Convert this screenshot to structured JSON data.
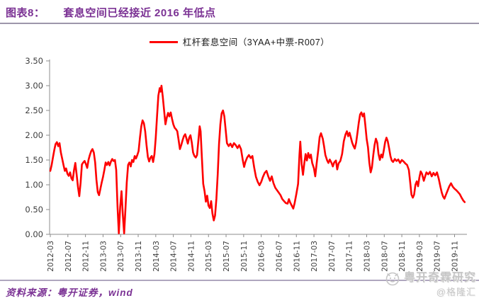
{
  "header": {
    "figure_label": "图表8：",
    "figure_title": "套息空间已经接近 2016 年低点"
  },
  "legend": {
    "series_label": "杠杆套息空间（3YAA+中票-R007）"
  },
  "footer": {
    "source": "资料来源：粤开证券，wind"
  },
  "watermark": {
    "brand": "粤开奇霖研究",
    "handle": "@格隆汇"
  },
  "colors": {
    "title_purple": "#7B3294",
    "series_red": "#FE0000",
    "axis_gray": "#8C8C8C",
    "tick_text": "#3d3d3d",
    "watermark_gray": "#C6C6C6"
  },
  "chart_data": {
    "type": "line",
    "title": "杠杆套息空间（3YAA+中票-R007）",
    "xlabel": "",
    "ylabel": "",
    "x_unit": "months since 2012-03",
    "xlim": [
      0,
      94.5
    ],
    "ylim": [
      0,
      3.5
    ],
    "grid": false,
    "legend_position": "top-center",
    "y_tick_labels": [
      "0.00",
      "0.50",
      "1.00",
      "1.50",
      "2.00",
      "2.50",
      "3.00",
      "3.50"
    ],
    "x_tick_interval_months": 4,
    "x_tick_labels": [
      "2012-03",
      "2012-07",
      "2012-11",
      "2013-03",
      "2013-07",
      "2013-11",
      "2014-03",
      "2014-07",
      "2014-11",
      "2015-03",
      "2015-07",
      "2015-11",
      "2016-03",
      "2016-07",
      "2016-11",
      "2017-03",
      "2017-07",
      "2017-11",
      "2018-03",
      "2018-07",
      "2018-11",
      "2019-03",
      "2019-07",
      "2019-11"
    ],
    "series": [
      {
        "name": "杠杆套息空间（3YAA+中票-R007）",
        "color": "#FE0000",
        "points": [
          [
            0,
            1.28
          ],
          [
            0.3,
            1.4
          ],
          [
            0.6,
            1.55
          ],
          [
            0.9,
            1.7
          ],
          [
            1.2,
            1.82
          ],
          [
            1.5,
            1.86
          ],
          [
            1.8,
            1.78
          ],
          [
            2.1,
            1.84
          ],
          [
            2.4,
            1.65
          ],
          [
            2.7,
            1.53
          ],
          [
            3,
            1.4
          ],
          [
            3.3,
            1.28
          ],
          [
            3.6,
            1.33
          ],
          [
            3.9,
            1.22
          ],
          [
            4.2,
            1.18
          ],
          [
            4.5,
            1.25
          ],
          [
            4.8,
            1.13
          ],
          [
            5.1,
            1.09
          ],
          [
            5.4,
            1.3
          ],
          [
            5.7,
            1.44
          ],
          [
            6,
            1.2
          ],
          [
            6.3,
            0.95
          ],
          [
            6.6,
            0.77
          ],
          [
            6.9,
            1.05
          ],
          [
            7.2,
            1.41
          ],
          [
            7.5,
            1.45
          ],
          [
            7.8,
            1.48
          ],
          [
            8.1,
            1.42
          ],
          [
            8.4,
            1.34
          ],
          [
            8.7,
            1.5
          ],
          [
            9,
            1.6
          ],
          [
            9.3,
            1.68
          ],
          [
            9.6,
            1.72
          ],
          [
            9.9,
            1.65
          ],
          [
            10.2,
            1.45
          ],
          [
            10.5,
            1.1
          ],
          [
            10.8,
            0.85
          ],
          [
            11.1,
            0.79
          ],
          [
            11.4,
            0.92
          ],
          [
            11.7,
            1.05
          ],
          [
            12,
            1.16
          ],
          [
            12.3,
            1.3
          ],
          [
            12.6,
            1.45
          ],
          [
            12.9,
            1.4
          ],
          [
            13.2,
            1.46
          ],
          [
            13.5,
            1.39
          ],
          [
            13.8,
            1.47
          ],
          [
            14.1,
            1.52
          ],
          [
            14.4,
            1.48
          ],
          [
            14.7,
            1.5
          ],
          [
            15,
            1.3
          ],
          [
            15.3,
            0.55
          ],
          [
            15.6,
            0.02
          ],
          [
            15.9,
            0.55
          ],
          [
            16.2,
            0.87
          ],
          [
            16.5,
            0.4
          ],
          [
            16.8,
            0.02
          ],
          [
            17.1,
            0.5
          ],
          [
            17.4,
            1.05
          ],
          [
            17.7,
            1.4
          ],
          [
            18,
            1.45
          ],
          [
            18.3,
            1.37
          ],
          [
            18.6,
            1.5
          ],
          [
            18.9,
            1.46
          ],
          [
            19.2,
            1.58
          ],
          [
            19.5,
            1.53
          ],
          [
            19.8,
            1.6
          ],
          [
            20.1,
            1.68
          ],
          [
            20.4,
            1.95
          ],
          [
            20.7,
            2.18
          ],
          [
            21,
            2.3
          ],
          [
            21.3,
            2.24
          ],
          [
            21.6,
            2.08
          ],
          [
            21.9,
            1.8
          ],
          [
            22.2,
            1.56
          ],
          [
            22.5,
            1.47
          ],
          [
            22.8,
            1.55
          ],
          [
            23.1,
            1.58
          ],
          [
            23.4,
            1.46
          ],
          [
            23.7,
            1.62
          ],
          [
            24,
            1.95
          ],
          [
            24.3,
            2.4
          ],
          [
            24.6,
            2.8
          ],
          [
            24.9,
            2.95
          ],
          [
            25.1,
            2.88
          ],
          [
            25.3,
            3.0
          ],
          [
            25.6,
            2.78
          ],
          [
            25.9,
            2.5
          ],
          [
            26.2,
            2.22
          ],
          [
            26.5,
            2.35
          ],
          [
            26.8,
            2.45
          ],
          [
            27.1,
            2.38
          ],
          [
            27.4,
            2.46
          ],
          [
            27.7,
            2.33
          ],
          [
            28,
            2.22
          ],
          [
            28.3,
            2.15
          ],
          [
            28.6,
            2.12
          ],
          [
            28.9,
            2.08
          ],
          [
            29.2,
            1.9
          ],
          [
            29.5,
            1.72
          ],
          [
            29.8,
            1.8
          ],
          [
            30.1,
            1.9
          ],
          [
            30.4,
            1.98
          ],
          [
            30.7,
            2.02
          ],
          [
            31,
            1.93
          ],
          [
            31.3,
            1.83
          ],
          [
            31.6,
            1.95
          ],
          [
            31.9,
            2.0
          ],
          [
            32.2,
            1.85
          ],
          [
            32.5,
            1.65
          ],
          [
            32.8,
            1.58
          ],
          [
            33.1,
            1.55
          ],
          [
            33.4,
            1.6
          ],
          [
            33.7,
            1.9
          ],
          [
            34,
            2.18
          ],
          [
            34.2,
            2.08
          ],
          [
            34.5,
            1.55
          ],
          [
            34.8,
            1.02
          ],
          [
            35.1,
            0.87
          ],
          [
            35.4,
            0.66
          ],
          [
            35.7,
            0.78
          ],
          [
            36,
            0.58
          ],
          [
            36.3,
            0.53
          ],
          [
            36.6,
            0.67
          ],
          [
            36.9,
            0.42
          ],
          [
            37.2,
            0.28
          ],
          [
            37.5,
            0.38
          ],
          [
            37.8,
            0.72
          ],
          [
            38.1,
            1.22
          ],
          [
            38.4,
            1.82
          ],
          [
            38.7,
            2.22
          ],
          [
            39,
            2.44
          ],
          [
            39.3,
            2.5
          ],
          [
            39.6,
            2.38
          ],
          [
            39.9,
            2.12
          ],
          [
            40.2,
            1.84
          ],
          [
            40.6,
            1.78
          ],
          [
            41,
            1.83
          ],
          [
            41.4,
            1.76
          ],
          [
            41.8,
            1.84
          ],
          [
            42.2,
            1.8
          ],
          [
            42.6,
            1.74
          ],
          [
            43,
            1.8
          ],
          [
            43.4,
            1.72
          ],
          [
            43.8,
            1.5
          ],
          [
            44.1,
            1.36
          ],
          [
            44.4,
            1.46
          ],
          [
            44.8,
            1.55
          ],
          [
            45.2,
            1.6
          ],
          [
            45.6,
            1.54
          ],
          [
            46,
            1.58
          ],
          [
            46.4,
            1.35
          ],
          [
            46.8,
            1.16
          ],
          [
            47.2,
            1.06
          ],
          [
            47.6,
            0.99
          ],
          [
            48,
            1.06
          ],
          [
            48.4,
            1.16
          ],
          [
            48.8,
            1.24
          ],
          [
            49.2,
            1.28
          ],
          [
            49.6,
            1.17
          ],
          [
            50,
            1.08
          ],
          [
            50.4,
            1.17
          ],
          [
            50.8,
            1.03
          ],
          [
            51.2,
            0.94
          ],
          [
            51.6,
            0.89
          ],
          [
            52,
            0.84
          ],
          [
            52.4,
            0.79
          ],
          [
            52.8,
            0.71
          ],
          [
            53.2,
            0.67
          ],
          [
            53.6,
            0.63
          ],
          [
            54,
            0.62
          ],
          [
            54.3,
            0.71
          ],
          [
            54.6,
            0.64
          ],
          [
            55,
            0.57
          ],
          [
            55.3,
            0.52
          ],
          [
            55.6,
            0.63
          ],
          [
            56,
            0.82
          ],
          [
            56.4,
            1.02
          ],
          [
            56.7,
            1.6
          ],
          [
            56.9,
            1.87
          ],
          [
            57.2,
            1.42
          ],
          [
            57.5,
            1.2
          ],
          [
            57.8,
            1.43
          ],
          [
            58.1,
            1.62
          ],
          [
            58.4,
            1.49
          ],
          [
            58.7,
            1.64
          ],
          [
            59,
            1.54
          ],
          [
            59.3,
            1.61
          ],
          [
            59.6,
            1.44
          ],
          [
            60,
            1.33
          ],
          [
            60.3,
            1.17
          ],
          [
            60.6,
            1.42
          ],
          [
            61,
            1.72
          ],
          [
            61.3,
            1.96
          ],
          [
            61.6,
            2.04
          ],
          [
            62,
            1.93
          ],
          [
            62.3,
            1.78
          ],
          [
            62.6,
            1.6
          ],
          [
            63,
            1.49
          ],
          [
            63.3,
            1.44
          ],
          [
            63.6,
            1.51
          ],
          [
            64,
            1.44
          ],
          [
            64.3,
            1.37
          ],
          [
            64.6,
            1.45
          ],
          [
            65,
            1.49
          ],
          [
            65.3,
            1.31
          ],
          [
            65.6,
            1.43
          ],
          [
            66,
            1.48
          ],
          [
            66.4,
            1.62
          ],
          [
            66.8,
            1.88
          ],
          [
            67.2,
            2.02
          ],
          [
            67.5,
            2.08
          ],
          [
            67.8,
            1.98
          ],
          [
            68.1,
            2.05
          ],
          [
            68.4,
            1.95
          ],
          [
            68.7,
            1.85
          ],
          [
            69,
            1.78
          ],
          [
            69.3,
            1.73
          ],
          [
            69.6,
            1.85
          ],
          [
            69.9,
            2.05
          ],
          [
            70.2,
            2.25
          ],
          [
            70.5,
            2.42
          ],
          [
            70.8,
            2.46
          ],
          [
            71.1,
            2.38
          ],
          [
            71.4,
            2.44
          ],
          [
            71.7,
            2.2
          ],
          [
            72,
            1.92
          ],
          [
            72.3,
            1.76
          ],
          [
            72.6,
            1.45
          ],
          [
            72.9,
            1.25
          ],
          [
            73.2,
            1.35
          ],
          [
            73.5,
            1.6
          ],
          [
            73.8,
            1.8
          ],
          [
            74.1,
            1.93
          ],
          [
            74.4,
            1.85
          ],
          [
            74.7,
            1.62
          ],
          [
            75,
            1.5
          ],
          [
            75.3,
            1.61
          ],
          [
            75.6,
            1.55
          ],
          [
            75.9,
            1.7
          ],
          [
            76.2,
            1.86
          ],
          [
            76.5,
            1.95
          ],
          [
            76.8,
            1.88
          ],
          [
            77.1,
            1.74
          ],
          [
            77.4,
            1.58
          ],
          [
            77.7,
            1.49
          ],
          [
            78,
            1.46
          ],
          [
            78.4,
            1.52
          ],
          [
            78.8,
            1.48
          ],
          [
            79.2,
            1.51
          ],
          [
            79.6,
            1.44
          ],
          [
            80,
            1.5
          ],
          [
            80.4,
            1.47
          ],
          [
            80.8,
            1.43
          ],
          [
            81.2,
            1.4
          ],
          [
            81.6,
            1.3
          ],
          [
            81.9,
            1.05
          ],
          [
            82.2,
            0.8
          ],
          [
            82.5,
            0.74
          ],
          [
            82.8,
            0.8
          ],
          [
            83.1,
            1.0
          ],
          [
            83.4,
            1.07
          ],
          [
            83.7,
            0.97
          ],
          [
            84,
            1.15
          ],
          [
            84.3,
            1.27
          ],
          [
            84.6,
            1.22
          ],
          [
            85,
            1.08
          ],
          [
            85.3,
            1.17
          ],
          [
            85.6,
            1.25
          ],
          [
            86,
            1.21
          ],
          [
            86.4,
            1.26
          ],
          [
            86.8,
            1.17
          ],
          [
            87.2,
            1.24
          ],
          [
            87.6,
            1.19
          ],
          [
            88,
            1.25
          ],
          [
            88.4,
            1.12
          ],
          [
            88.8,
            0.95
          ],
          [
            89.1,
            0.84
          ],
          [
            89.4,
            0.76
          ],
          [
            89.7,
            0.72
          ],
          [
            90,
            0.79
          ],
          [
            90.4,
            0.88
          ],
          [
            90.8,
            0.97
          ],
          [
            91.2,
            1.03
          ],
          [
            91.6,
            0.96
          ],
          [
            92,
            0.92
          ],
          [
            92.4,
            0.89
          ],
          [
            92.8,
            0.85
          ],
          [
            93.2,
            0.81
          ],
          [
            93.6,
            0.74
          ],
          [
            94,
            0.68
          ],
          [
            94.3,
            0.65
          ]
        ]
      }
    ]
  }
}
